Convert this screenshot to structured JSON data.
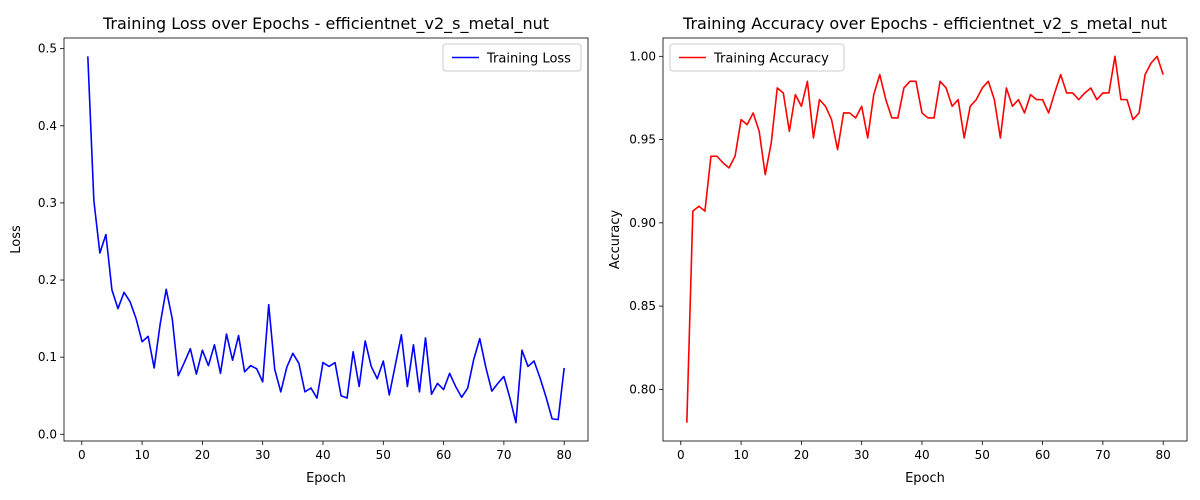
{
  "chart_data": [
    {
      "type": "line",
      "title": "Training Loss over Epochs - efficientnet_v2_s_metal_nut",
      "xlabel": "Epoch",
      "ylabel": "Loss",
      "xlim": [
        -2.95,
        83.95
      ],
      "ylim": [
        -0.0087,
        0.5138
      ],
      "xticks": [
        0,
        10,
        20,
        30,
        40,
        50,
        60,
        70,
        80
      ],
      "yticks": [
        0.0,
        0.1,
        0.2,
        0.3,
        0.4,
        0.5
      ],
      "ytick_format": 1,
      "grid": false,
      "legend": "upper-right",
      "series": [
        {
          "name": "Training Loss",
          "color": "#0000ff",
          "x": [
            1,
            2,
            3,
            4,
            5,
            6,
            7,
            8,
            9,
            10,
            11,
            12,
            13,
            14,
            15,
            16,
            17,
            18,
            19,
            20,
            21,
            22,
            23,
            24,
            25,
            26,
            27,
            28,
            29,
            30,
            31,
            32,
            33,
            34,
            35,
            36,
            37,
            38,
            39,
            40,
            41,
            42,
            43,
            44,
            45,
            46,
            47,
            48,
            49,
            50,
            51,
            52,
            53,
            54,
            55,
            56,
            57,
            58,
            59,
            60,
            61,
            62,
            63,
            64,
            65,
            66,
            67,
            68,
            69,
            70,
            71,
            72,
            73,
            74,
            75,
            76,
            77,
            78,
            79,
            80
          ],
          "values": [
            0.49,
            0.303,
            0.235,
            0.259,
            0.187,
            0.163,
            0.184,
            0.172,
            0.15,
            0.12,
            0.127,
            0.086,
            0.143,
            0.188,
            0.15,
            0.076,
            0.093,
            0.111,
            0.078,
            0.109,
            0.089,
            0.116,
            0.079,
            0.13,
            0.096,
            0.128,
            0.081,
            0.089,
            0.085,
            0.068,
            0.168,
            0.084,
            0.055,
            0.087,
            0.105,
            0.092,
            0.055,
            0.06,
            0.047,
            0.093,
            0.088,
            0.093,
            0.05,
            0.047,
            0.107,
            0.062,
            0.121,
            0.088,
            0.072,
            0.095,
            0.051,
            0.09,
            0.129,
            0.062,
            0.116,
            0.055,
            0.125,
            0.052,
            0.066,
            0.058,
            0.079,
            0.062,
            0.048,
            0.06,
            0.097,
            0.124,
            0.087,
            0.056,
            0.066,
            0.075,
            0.047,
            0.015,
            0.109,
            0.088,
            0.095,
            0.073,
            0.048,
            0.02,
            0.019,
            0.086
          ]
        }
      ]
    },
    {
      "type": "line",
      "title": "Training Accuracy over Epochs - efficientnet_v2_s_metal_nut",
      "xlabel": "Epoch",
      "ylabel": "Accuracy",
      "xlim": [
        -2.95,
        83.95
      ],
      "ylim": [
        0.769,
        1.011
      ],
      "xticks": [
        0,
        10,
        20,
        30,
        40,
        50,
        60,
        70,
        80
      ],
      "yticks": [
        0.8,
        0.85,
        0.9,
        0.95,
        1.0
      ],
      "ytick_format": 2,
      "grid": false,
      "legend": "upper-left",
      "series": [
        {
          "name": "Training Accuracy",
          "color": "#ff0000",
          "x": [
            1,
            2,
            3,
            4,
            5,
            6,
            7,
            8,
            9,
            10,
            11,
            12,
            13,
            14,
            15,
            16,
            17,
            18,
            19,
            20,
            21,
            22,
            23,
            24,
            25,
            26,
            27,
            28,
            29,
            30,
            31,
            32,
            33,
            34,
            35,
            36,
            37,
            38,
            39,
            40,
            41,
            42,
            43,
            44,
            45,
            46,
            47,
            48,
            49,
            50,
            51,
            52,
            53,
            54,
            55,
            56,
            57,
            58,
            59,
            60,
            61,
            62,
            63,
            64,
            65,
            66,
            67,
            68,
            69,
            70,
            71,
            72,
            73,
            74,
            75,
            76,
            77,
            78,
            79,
            80
          ],
          "values": [
            0.78,
            0.907,
            0.91,
            0.907,
            0.94,
            0.94,
            0.936,
            0.933,
            0.94,
            0.962,
            0.959,
            0.966,
            0.955,
            0.929,
            0.948,
            0.981,
            0.978,
            0.955,
            0.977,
            0.97,
            0.985,
            0.951,
            0.974,
            0.97,
            0.962,
            0.944,
            0.966,
            0.966,
            0.963,
            0.97,
            0.951,
            0.977,
            0.989,
            0.974,
            0.963,
            0.963,
            0.981,
            0.985,
            0.985,
            0.966,
            0.963,
            0.963,
            0.985,
            0.981,
            0.97,
            0.974,
            0.951,
            0.97,
            0.974,
            0.981,
            0.985,
            0.974,
            0.951,
            0.981,
            0.97,
            0.974,
            0.966,
            0.977,
            0.974,
            0.974,
            0.966,
            0.978,
            0.989,
            0.978,
            0.978,
            0.974,
            0.978,
            0.981,
            0.974,
            0.978,
            0.978,
            1.0,
            0.974,
            0.974,
            0.962,
            0.966,
            0.989,
            0.996,
            1.0,
            0.989
          ]
        }
      ]
    }
  ]
}
